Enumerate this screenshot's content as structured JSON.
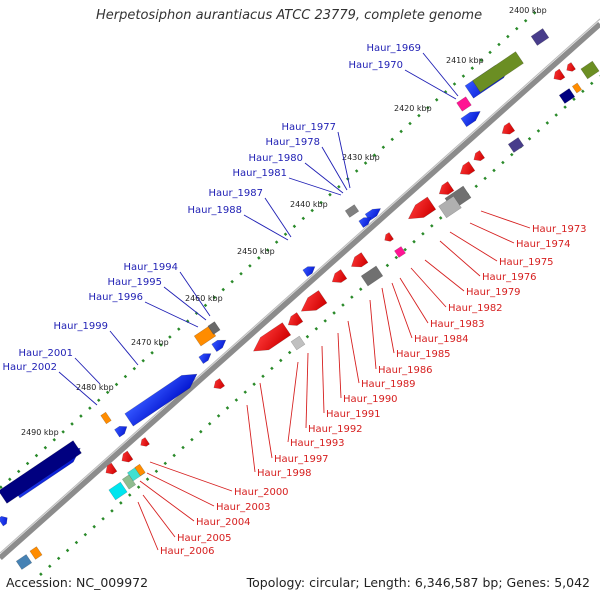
{
  "title": "Herpetosiphon aurantiacus ATCC 23779, complete genome",
  "accession_label": "Accession: NC_009972",
  "summary_label": "Topology: circular; Length: 6,346,587 bp; Genes: 5,042",
  "kbp_labels": [
    "2400 kbp",
    "2410 kbp",
    "2420 kbp",
    "2430 kbp",
    "2440 kbp",
    "2450 kbp",
    "2460 kbp",
    "2470 kbp",
    "2480 kbp",
    "2490 kbp"
  ],
  "forward_genes": [
    "Haur_1969",
    "Haur_1970",
    "Haur_1977",
    "Haur_1978",
    "Haur_1980",
    "Haur_1981",
    "Haur_1987",
    "Haur_1988",
    "Haur_1994",
    "Haur_1995",
    "Haur_1996",
    "Haur_1999",
    "Haur_2001",
    "Haur_2002"
  ],
  "reverse_genes": [
    "Haur_1973",
    "Haur_1974",
    "Haur_1975",
    "Haur_1976",
    "Haur_1979",
    "Haur_1982",
    "Haur_1983",
    "Haur_1984",
    "Haur_1985",
    "Haur_1986",
    "Haur_1989",
    "Haur_1990",
    "Haur_1991",
    "Haur_1992",
    "Haur_1993",
    "Haur_1997",
    "Haur_1998",
    "Haur_2000",
    "Haur_2003",
    "Haur_2004",
    "Haur_2005",
    "Haur_2006"
  ],
  "colors": {
    "forward_label": "#1f1fb4",
    "reverse_label": "#d62020",
    "backbone": "#8c8c8c",
    "forward_cds": "#0022dd",
    "reverse_cds": "#ee1111",
    "tick": "#2a8a2a"
  }
}
